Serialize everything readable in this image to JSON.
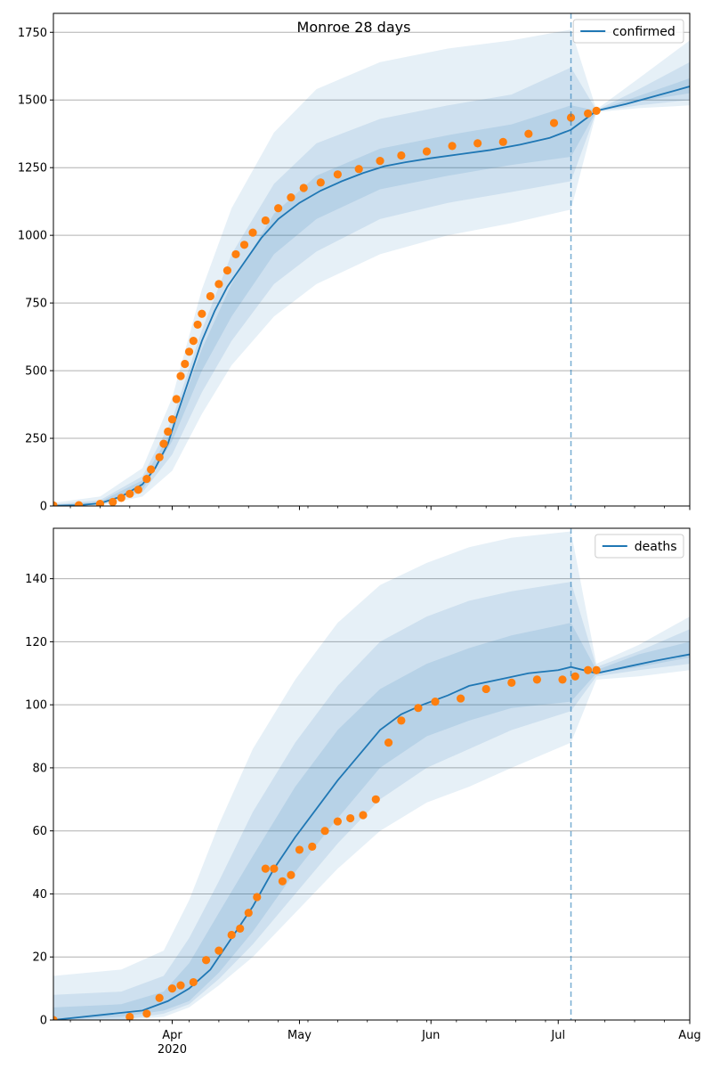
{
  "chart_data": [
    {
      "type": "line",
      "title": "Monroe 28 days",
      "legend": {
        "entries": [
          "confirmed"
        ],
        "placement": "top-right"
      },
      "x_axis": {
        "type": "date",
        "range": [
          "2020-03-04",
          "2020-08-01"
        ]
      },
      "ylim": [
        0,
        1820
      ],
      "yticks": [
        0,
        250,
        500,
        750,
        1000,
        1250,
        1500,
        1750
      ],
      "ytick_labels": [
        "0",
        "250",
        "500",
        "750",
        "1000",
        "1250",
        "1500",
        "1750"
      ],
      "grid": "y",
      "forecast_start": "2020-07-04",
      "colors": {
        "model": "#1f77b4",
        "observed": "#ff7f0e"
      },
      "series": [
        {
          "name": "confirmed",
          "style": "line",
          "x": [
            "2020-03-04",
            "2020-03-10",
            "2020-03-15",
            "2020-03-20",
            "2020-03-25",
            "2020-03-28",
            "2020-03-31",
            "2020-04-02",
            "2020-04-05",
            "2020-04-08",
            "2020-04-11",
            "2020-04-14",
            "2020-04-18",
            "2020-04-22",
            "2020-04-26",
            "2020-05-01",
            "2020-05-06",
            "2020-05-11",
            "2020-05-16",
            "2020-05-21",
            "2020-05-26",
            "2020-06-01",
            "2020-06-08",
            "2020-06-15",
            "2020-06-22",
            "2020-06-29",
            "2020-07-04",
            "2020-07-10",
            "2020-07-17",
            "2020-07-24",
            "2020-08-01"
          ],
          "y": [
            1,
            3,
            10,
            35,
            80,
            140,
            230,
            330,
            470,
            610,
            720,
            810,
            900,
            990,
            1060,
            1120,
            1165,
            1200,
            1230,
            1255,
            1270,
            1285,
            1300,
            1315,
            1335,
            1360,
            1390,
            1460,
            1485,
            1515,
            1550
          ]
        },
        {
          "name": "observed",
          "style": "points",
          "x": [
            "2020-03-04",
            "2020-03-10",
            "2020-03-15",
            "2020-03-18",
            "2020-03-20",
            "2020-03-22",
            "2020-03-24",
            "2020-03-26",
            "2020-03-27",
            "2020-03-29",
            "2020-03-30",
            "2020-03-31",
            "2020-04-01",
            "2020-04-02",
            "2020-04-03",
            "2020-04-04",
            "2020-04-05",
            "2020-04-06",
            "2020-04-07",
            "2020-04-08",
            "2020-04-10",
            "2020-04-12",
            "2020-04-14",
            "2020-04-16",
            "2020-04-18",
            "2020-04-20",
            "2020-04-23",
            "2020-04-26",
            "2020-04-29",
            "2020-05-02",
            "2020-05-06",
            "2020-05-10",
            "2020-05-15",
            "2020-05-20",
            "2020-05-25",
            "2020-05-31",
            "2020-06-06",
            "2020-06-12",
            "2020-06-18",
            "2020-06-24",
            "2020-06-30",
            "2020-07-04",
            "2020-07-08",
            "2020-07-10"
          ],
          "y": [
            2,
            3,
            8,
            15,
            30,
            45,
            60,
            100,
            135,
            180,
            230,
            275,
            320,
            395,
            480,
            525,
            570,
            610,
            670,
            710,
            775,
            820,
            870,
            930,
            965,
            1010,
            1055,
            1100,
            1140,
            1175,
            1195,
            1225,
            1245,
            1275,
            1295,
            1310,
            1330,
            1340,
            1345,
            1375,
            1415,
            1435,
            1450,
            1460
          ]
        }
      ],
      "uncertainty_bands": [
        {
          "level": "outer",
          "x": [
            "2020-03-04",
            "2020-03-15",
            "2020-03-25",
            "2020-04-01",
            "2020-04-08",
            "2020-04-15",
            "2020-04-25",
            "2020-05-05",
            "2020-05-20",
            "2020-06-05",
            "2020-06-20",
            "2020-07-04",
            "2020-07-10",
            "2020-07-20",
            "2020-08-01"
          ],
          "lower": [
            0,
            2,
            35,
            130,
            340,
            520,
            700,
            820,
            930,
            1000,
            1045,
            1095,
            1455,
            1470,
            1480
          ],
          "upper": [
            12,
            35,
            140,
            400,
            800,
            1100,
            1380,
            1540,
            1640,
            1690,
            1720,
            1760,
            1465,
            1580,
            1720
          ]
        },
        {
          "level": "middle",
          "x": [
            "2020-03-04",
            "2020-03-15",
            "2020-03-25",
            "2020-04-01",
            "2020-04-08",
            "2020-04-15",
            "2020-04-25",
            "2020-05-05",
            "2020-05-20",
            "2020-06-05",
            "2020-06-20",
            "2020-07-04",
            "2020-07-10",
            "2020-07-20",
            "2020-08-01"
          ],
          "lower": [
            0,
            4,
            50,
            190,
            420,
            610,
            820,
            940,
            1060,
            1120,
            1160,
            1200,
            1458,
            1480,
            1500
          ],
          "upper": [
            6,
            22,
            110,
            320,
            650,
            930,
            1190,
            1340,
            1430,
            1480,
            1520,
            1620,
            1462,
            1540,
            1640
          ]
        },
        {
          "level": "inner",
          "x": [
            "2020-03-04",
            "2020-03-15",
            "2020-03-25",
            "2020-04-01",
            "2020-04-08",
            "2020-04-15",
            "2020-04-25",
            "2020-05-05",
            "2020-05-20",
            "2020-06-05",
            "2020-06-20",
            "2020-07-04",
            "2020-07-10",
            "2020-07-20",
            "2020-08-01"
          ],
          "lower": [
            0,
            6,
            60,
            240,
            500,
            700,
            930,
            1060,
            1170,
            1220,
            1260,
            1290,
            1459,
            1495,
            1525
          ],
          "upper": [
            3,
            16,
            95,
            280,
            580,
            820,
            1080,
            1220,
            1320,
            1370,
            1410,
            1480,
            1461,
            1515,
            1580
          ]
        }
      ]
    },
    {
      "type": "line",
      "title": "",
      "legend": {
        "entries": [
          "deaths"
        ],
        "placement": "top-right"
      },
      "x_axis": {
        "type": "date",
        "range": [
          "2020-03-04",
          "2020-08-01"
        ],
        "major_ticks": [
          "2020-04-01",
          "2020-05-01",
          "2020-06-01",
          "2020-07-01",
          "2020-08-01"
        ],
        "major_tick_labels": [
          "Apr\n2020",
          "May",
          "Jun",
          "Jul",
          "Aug"
        ]
      },
      "ylim": [
        0,
        156
      ],
      "yticks": [
        0,
        20,
        40,
        60,
        80,
        100,
        120,
        140
      ],
      "ytick_labels": [
        "0",
        "20",
        "40",
        "60",
        "80",
        "100",
        "120",
        "140"
      ],
      "grid": "y",
      "forecast_start": "2020-07-04",
      "colors": {
        "model": "#1f77b4",
        "observed": "#ff7f0e"
      },
      "series": [
        {
          "name": "deaths",
          "style": "line",
          "x": [
            "2020-03-04",
            "2020-03-18",
            "2020-03-25",
            "2020-03-31",
            "2020-04-05",
            "2020-04-10",
            "2020-04-15",
            "2020-04-20",
            "2020-04-25",
            "2020-04-30",
            "2020-05-05",
            "2020-05-10",
            "2020-05-15",
            "2020-05-20",
            "2020-05-25",
            "2020-05-30",
            "2020-06-05",
            "2020-06-10",
            "2020-06-17",
            "2020-06-24",
            "2020-07-01",
            "2020-07-04",
            "2020-07-10",
            "2020-07-17",
            "2020-07-24",
            "2020-08-01"
          ],
          "y": [
            0,
            2,
            3,
            6,
            10,
            16,
            26,
            36,
            48,
            58,
            67,
            76,
            84,
            92,
            97,
            100,
            103,
            106,
            108,
            110,
            111,
            112,
            110,
            112,
            114,
            116
          ]
        },
        {
          "name": "observed",
          "style": "points",
          "x": [
            "2020-03-04",
            "2020-03-22",
            "2020-03-26",
            "2020-03-29",
            "2020-04-01",
            "2020-04-03",
            "2020-04-06",
            "2020-04-09",
            "2020-04-12",
            "2020-04-15",
            "2020-04-17",
            "2020-04-19",
            "2020-04-21",
            "2020-04-23",
            "2020-04-25",
            "2020-04-27",
            "2020-04-29",
            "2020-05-01",
            "2020-05-04",
            "2020-05-07",
            "2020-05-10",
            "2020-05-13",
            "2020-05-16",
            "2020-05-19",
            "2020-05-22",
            "2020-05-25",
            "2020-05-29",
            "2020-06-02",
            "2020-06-08",
            "2020-06-14",
            "2020-06-20",
            "2020-06-26",
            "2020-07-02",
            "2020-07-05",
            "2020-07-08",
            "2020-07-10"
          ],
          "y": [
            0,
            1,
            2,
            7,
            10,
            11,
            12,
            19,
            22,
            27,
            29,
            34,
            39,
            48,
            48,
            44,
            46,
            54,
            55,
            60,
            63,
            64,
            65,
            70,
            88,
            95,
            99,
            101,
            102,
            105,
            107,
            108,
            108,
            109,
            111,
            111
          ]
        }
      ],
      "uncertainty_bands": [
        {
          "level": "outer",
          "x": [
            "2020-03-04",
            "2020-03-20",
            "2020-03-30",
            "2020-04-05",
            "2020-04-12",
            "2020-04-20",
            "2020-04-30",
            "2020-05-10",
            "2020-05-20",
            "2020-05-31",
            "2020-06-10",
            "2020-06-20",
            "2020-07-04",
            "2020-07-10",
            "2020-07-20",
            "2020-08-01"
          ],
          "lower": [
            0,
            0,
            1,
            4,
            11,
            20,
            34,
            48,
            60,
            69,
            74,
            80,
            88,
            108,
            109,
            111
          ],
          "upper": [
            14,
            16,
            22,
            38,
            62,
            86,
            108,
            126,
            138,
            145,
            150,
            153,
            155,
            113,
            119,
            128
          ]
        },
        {
          "level": "middle",
          "x": [
            "2020-03-04",
            "2020-03-20",
            "2020-03-30",
            "2020-04-05",
            "2020-04-12",
            "2020-04-20",
            "2020-04-30",
            "2020-05-10",
            "2020-05-20",
            "2020-05-31",
            "2020-06-10",
            "2020-06-20",
            "2020-07-04",
            "2020-07-10",
            "2020-07-20",
            "2020-08-01"
          ],
          "lower": [
            0,
            0,
            2,
            5,
            13,
            24,
            40,
            56,
            70,
            80,
            86,
            92,
            98,
            109,
            111,
            113
          ],
          "upper": [
            8,
            9,
            14,
            26,
            44,
            66,
            88,
            106,
            120,
            128,
            133,
            136,
            139,
            112,
            117,
            124
          ]
        },
        {
          "level": "inner",
          "x": [
            "2020-03-04",
            "2020-03-20",
            "2020-03-30",
            "2020-04-05",
            "2020-04-12",
            "2020-04-20",
            "2020-04-30",
            "2020-05-10",
            "2020-05-20",
            "2020-05-31",
            "2020-06-10",
            "2020-06-20",
            "2020-07-04",
            "2020-07-10",
            "2020-07-20",
            "2020-08-01"
          ],
          "lower": [
            0,
            1,
            3,
            6,
            15,
            28,
            47,
            64,
            80,
            90,
            95,
            99,
            101,
            110,
            112,
            115
          ],
          "upper": [
            4,
            5,
            9,
            18,
            34,
            52,
            74,
            92,
            105,
            113,
            118,
            122,
            126,
            111,
            116,
            120
          ]
        }
      ]
    }
  ]
}
